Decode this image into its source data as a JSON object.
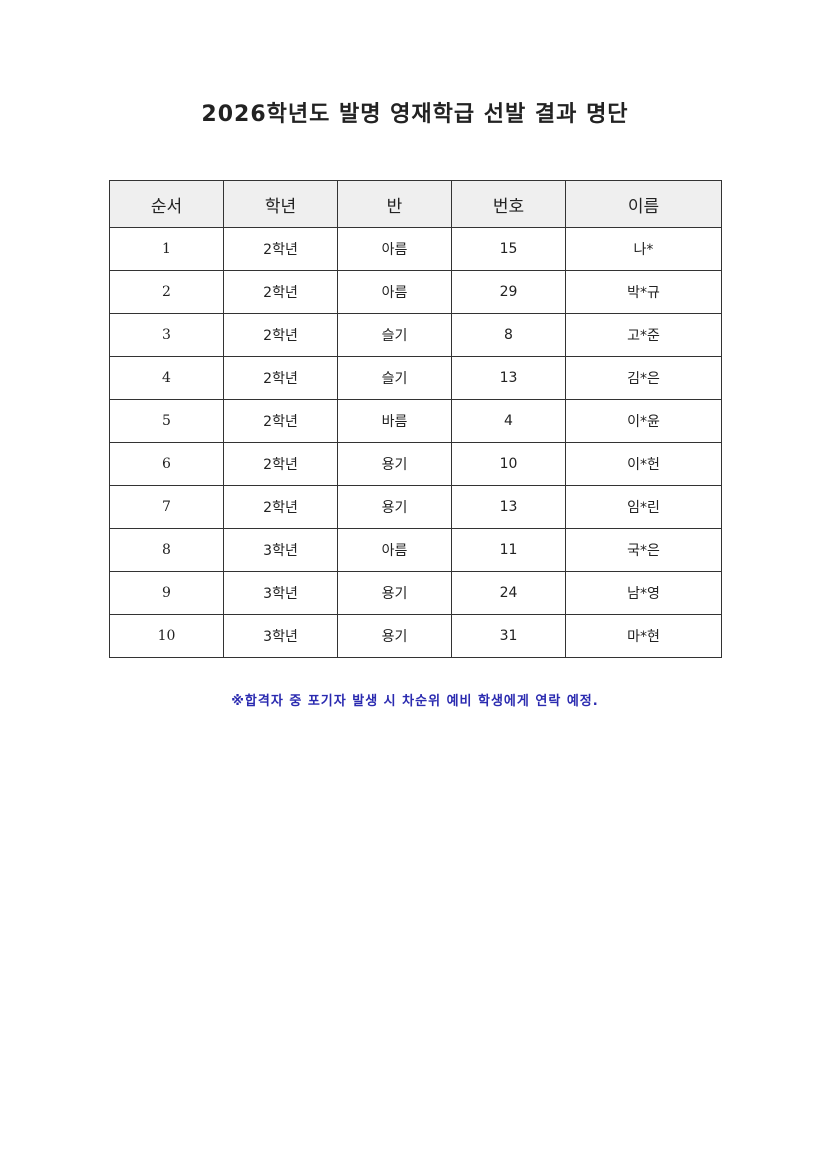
{
  "title": "2026학년도 발명 영재학급 선발 결과 명단",
  "table": {
    "headers": [
      "순서",
      "학년",
      "반",
      "번호",
      "이름"
    ],
    "rows": [
      [
        "1",
        "2학년",
        "아름",
        "15",
        "나*"
      ],
      [
        "2",
        "2학년",
        "아름",
        "29",
        "박*규"
      ],
      [
        "3",
        "2학년",
        "슬기",
        "8",
        "고*준"
      ],
      [
        "4",
        "2학년",
        "슬기",
        "13",
        "김*은"
      ],
      [
        "5",
        "2학년",
        "바름",
        "4",
        "이*윤"
      ],
      [
        "6",
        "2학년",
        "용기",
        "10",
        "이*헌"
      ],
      [
        "7",
        "2학년",
        "용기",
        "13",
        "임*린"
      ],
      [
        "8",
        "3학년",
        "아름",
        "11",
        "국*은"
      ],
      [
        "9",
        "3학년",
        "용기",
        "24",
        "남*영"
      ],
      [
        "10",
        "3학년",
        "용기",
        "31",
        "마*현"
      ]
    ]
  },
  "note": "※합격자 중 포기자 발생 시 차순위 예비 학생에게 연락 예정.",
  "colors": {
    "note": "#2a2ab0",
    "header_bg": "#efefef"
  }
}
